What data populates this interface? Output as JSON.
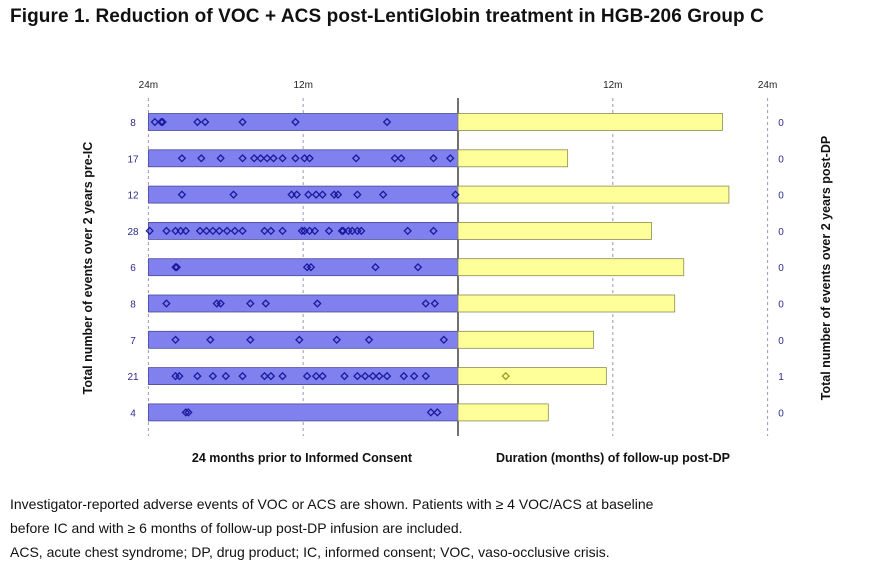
{
  "title": "Figure 1. Reduction of VOC + ACS post-LentiGlobin treatment in HGB-206 Group C",
  "footnotes": [
    "Investigator-reported adverse events of VOC or ACS are shown. Patients with ≥ 4 VOC/ACS at baseline",
    "before IC and with ≥ 6 months of follow-up post-DP infusion are included.",
    "ACS, acute chest syndrome; DP, drug product; IC, informed consent; VOC, vaso-occlusive crisis."
  ],
  "chart_data": {
    "type": "bar",
    "left_panel": {
      "xlabel": "24 months prior to Informed Consent",
      "ylabel": "Total number of events over 2 years pre-IC",
      "ticks": [
        "24m",
        "12m"
      ],
      "range_months": [
        0,
        24
      ],
      "bar_color": "#8080ee",
      "marker_color": "#1a1a9c"
    },
    "right_panel": {
      "xlabel": "Duration (months) of follow-up post-DP",
      "ylabel": "Total number of events over 2 years post-DP",
      "ticks": [
        "12m",
        "24m"
      ],
      "range_months": [
        0,
        24
      ],
      "bar_color": "#ffff99",
      "marker_color": "#9a9a20"
    },
    "patients": [
      {
        "pre_events": 8,
        "post_events": 0,
        "followup_months": 20.5,
        "pre_event_months": [
          23.5,
          22.9,
          20.2,
          19.6,
          16.7,
          12.6,
          5.5,
          23.0
        ]
      },
      {
        "pre_events": 17,
        "post_events": 0,
        "followup_months": 8.5,
        "pre_event_months": [
          21.4,
          19.9,
          18.4,
          16.7,
          15.8,
          15.3,
          14.8,
          14.3,
          13.6,
          12.6,
          11.9,
          11.5,
          7.9,
          4.9,
          4.4,
          1.9,
          0.6
        ]
      },
      {
        "pre_events": 12,
        "post_events": 0,
        "followup_months": 21.0,
        "pre_event_months": [
          21.4,
          17.4,
          12.9,
          12.5,
          11.6,
          11.0,
          10.5,
          9.6,
          7.8,
          5.8,
          0.2,
          9.3
        ]
      },
      {
        "pre_events": 28,
        "post_events": 0,
        "followup_months": 15.0,
        "pre_event_months": [
          23.9,
          22.6,
          21.9,
          21.5,
          21.1,
          20.0,
          19.5,
          19.0,
          18.5,
          17.9,
          17.3,
          16.7,
          15.0,
          14.5,
          13.6,
          12.1,
          11.9,
          11.5,
          11.1,
          10.0,
          9.0,
          8.9,
          8.5,
          8.2,
          7.8,
          7.5,
          3.9,
          1.9
        ]
      },
      {
        "pre_events": 6,
        "post_events": 0,
        "followup_months": 17.5,
        "pre_event_months": [
          21.9,
          11.7,
          6.4,
          3.1,
          11.4,
          21.8
        ]
      },
      {
        "pre_events": 8,
        "post_events": 0,
        "followup_months": 16.8,
        "pre_event_months": [
          22.6,
          18.7,
          18.4,
          16.1,
          14.9,
          10.9,
          2.5,
          1.8
        ]
      },
      {
        "pre_events": 7,
        "post_events": 0,
        "followup_months": 10.5,
        "pre_event_months": [
          21.9,
          19.2,
          16.1,
          12.3,
          9.4,
          6.9,
          1.1
        ]
      },
      {
        "pre_events": 21,
        "post_events": 1,
        "followup_months": 11.5,
        "post_event_months": [
          3.7
        ],
        "pre_event_months": [
          21.9,
          21.6,
          20.2,
          19.0,
          18.0,
          16.7,
          15.0,
          14.5,
          13.6,
          11.7,
          11.0,
          10.5,
          8.8,
          7.8,
          7.2,
          6.6,
          6.1,
          5.5,
          4.2,
          3.4,
          2.5
        ]
      },
      {
        "pre_events": 4,
        "post_events": 0,
        "followup_months": 7.0,
        "pre_event_months": [
          21.1,
          20.9,
          2.1,
          1.6
        ]
      }
    ]
  }
}
